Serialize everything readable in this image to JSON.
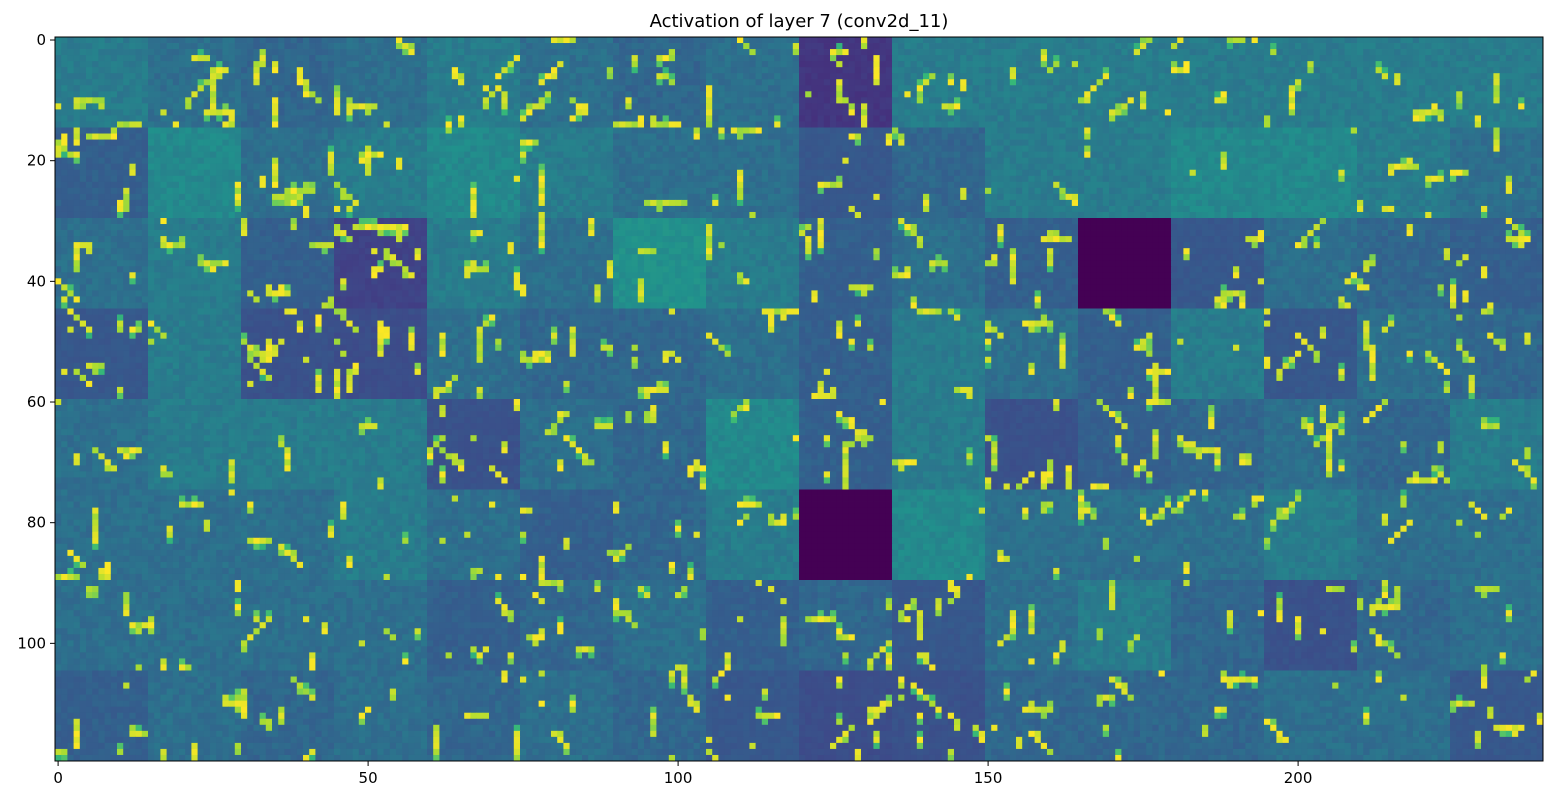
{
  "chart_data": {
    "type": "heatmap",
    "title": "Activation of layer 7 (conv2d_11)",
    "xlabel": "",
    "ylabel": "",
    "xlim": [
      -0.5,
      239.5
    ],
    "ylim": [
      119.5,
      -0.5
    ],
    "x_ticks": [
      0,
      50,
      100,
      150,
      200
    ],
    "y_ticks": [
      0,
      20,
      40,
      60,
      80,
      100
    ],
    "x_tick_labels": [
      "0",
      "50",
      "100",
      "150",
      "200"
    ],
    "y_tick_labels": [
      "0",
      "20",
      "40",
      "60",
      "80",
      "100"
    ],
    "colormap": "viridis",
    "grid": false,
    "tile_size": 15,
    "tile_rows": 8,
    "tile_cols": 16,
    "tile_base_levels": [
      [
        0.45,
        0.42,
        0.4,
        0.42,
        0.45,
        0.42,
        0.4,
        0.42,
        0.2,
        0.45,
        0.45,
        0.45,
        0.45,
        0.45,
        0.45,
        0.45
      ],
      [
        0.38,
        0.48,
        0.42,
        0.45,
        0.48,
        0.45,
        0.42,
        0.42,
        0.35,
        0.4,
        0.45,
        0.45,
        0.48,
        0.48,
        0.45,
        0.42
      ],
      [
        0.42,
        0.45,
        0.38,
        0.25,
        0.45,
        0.42,
        0.5,
        0.45,
        0.38,
        0.42,
        0.38,
        0.0,
        0.35,
        0.42,
        0.4,
        0.38
      ],
      [
        0.35,
        0.45,
        0.32,
        0.3,
        0.42,
        0.4,
        0.4,
        0.42,
        0.38,
        0.45,
        0.42,
        0.38,
        0.45,
        0.35,
        0.42,
        0.4
      ],
      [
        0.42,
        0.45,
        0.45,
        0.45,
        0.32,
        0.42,
        0.4,
        0.48,
        0.38,
        0.45,
        0.32,
        0.38,
        0.4,
        0.42,
        0.4,
        0.45
      ],
      [
        0.42,
        0.42,
        0.42,
        0.45,
        0.42,
        0.38,
        0.4,
        0.45,
        0.0,
        0.48,
        0.42,
        0.42,
        0.42,
        0.45,
        0.42,
        0.42
      ],
      [
        0.42,
        0.42,
        0.42,
        0.42,
        0.38,
        0.4,
        0.42,
        0.38,
        0.4,
        0.35,
        0.42,
        0.45,
        0.4,
        0.32,
        0.4,
        0.42
      ],
      [
        0.38,
        0.42,
        0.4,
        0.42,
        0.4,
        0.42,
        0.4,
        0.35,
        0.3,
        0.32,
        0.4,
        0.4,
        0.4,
        0.42,
        0.42,
        0.35
      ]
    ],
    "tile_activation_density": [
      [
        0.08,
        0.22,
        0.18,
        0.14,
        0.18,
        0.16,
        0.18,
        0.16,
        0.22,
        0.14,
        0.1,
        0.12,
        0.14,
        0.12,
        0.08,
        0.1
      ],
      [
        0.2,
        0.03,
        0.16,
        0.14,
        0.08,
        0.1,
        0.08,
        0.12,
        0.16,
        0.08,
        0.06,
        0.06,
        0.06,
        0.04,
        0.12,
        0.12
      ],
      [
        0.12,
        0.08,
        0.18,
        0.26,
        0.16,
        0.12,
        0.04,
        0.1,
        0.14,
        0.1,
        0.16,
        0.0,
        0.22,
        0.12,
        0.14,
        0.18
      ],
      [
        0.22,
        0.04,
        0.24,
        0.24,
        0.14,
        0.16,
        0.16,
        0.12,
        0.2,
        0.08,
        0.16,
        0.18,
        0.04,
        0.18,
        0.14,
        0.14
      ],
      [
        0.1,
        0.06,
        0.06,
        0.04,
        0.22,
        0.1,
        0.14,
        0.06,
        0.24,
        0.04,
        0.22,
        0.26,
        0.14,
        0.22,
        0.16,
        0.08
      ],
      [
        0.12,
        0.1,
        0.1,
        0.1,
        0.14,
        0.16,
        0.14,
        0.1,
        0.0,
        0.04,
        0.1,
        0.16,
        0.16,
        0.04,
        0.08,
        0.1
      ],
      [
        0.1,
        0.14,
        0.12,
        0.1,
        0.16,
        0.14,
        0.14,
        0.16,
        0.18,
        0.2,
        0.12,
        0.08,
        0.08,
        0.16,
        0.18,
        0.1
      ],
      [
        0.12,
        0.12,
        0.12,
        0.08,
        0.12,
        0.12,
        0.14,
        0.18,
        0.22,
        0.22,
        0.14,
        0.12,
        0.16,
        0.08,
        0.08,
        0.2
      ]
    ]
  }
}
